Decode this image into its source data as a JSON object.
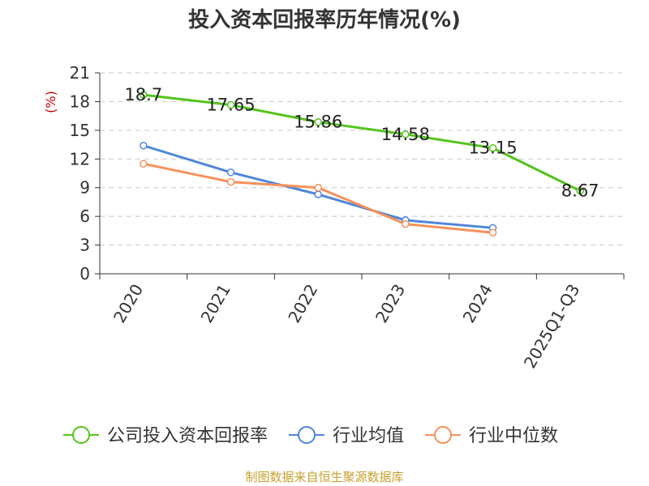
{
  "page": {
    "title": "投入资本回报率历年情况(%)",
    "source": "制图数据来自恒生聚源数据库"
  },
  "chart_data": {
    "type": "line",
    "title": "投入资本回报率历年情况(%)",
    "xlabel": "",
    "ylabel": "(%)",
    "ylim": [
      0,
      21
    ],
    "yticks": [
      0,
      3,
      6,
      9,
      12,
      15,
      18,
      21
    ],
    "grid": true,
    "legend_position": "bottom",
    "categories": [
      "2020",
      "2021",
      "2022",
      "2023",
      "2024",
      "2025Q1-Q3"
    ],
    "series": [
      {
        "name": "公司投入资本回报率",
        "color": "#52c41a",
        "labels": true,
        "values": [
          18.7,
          17.65,
          15.86,
          14.58,
          13.15,
          8.67
        ]
      },
      {
        "name": "行业均值",
        "color": "#4f86d9",
        "labels": false,
        "values": [
          13.4,
          10.6,
          8.3,
          5.6,
          4.8,
          null
        ]
      },
      {
        "name": "行业中位数",
        "color": "#f5915a",
        "labels": false,
        "values": [
          11.5,
          9.6,
          9.0,
          5.2,
          4.3,
          null
        ]
      }
    ]
  }
}
